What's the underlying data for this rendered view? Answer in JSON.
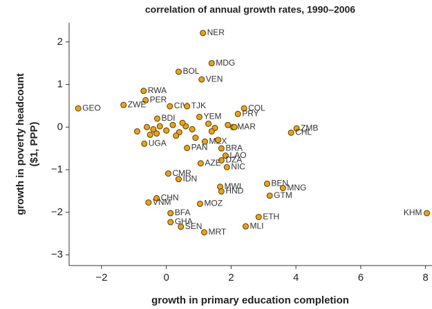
{
  "chart_data": {
    "type": "scatter",
    "title": "correlation of annual growth rates, 1990–2006",
    "xlabel": "growth in primary education completion",
    "ylabel": [
      "growth in poverty headcount",
      "($1, PPP)"
    ],
    "xlim": [
      -3,
      8.2
    ],
    "ylim": [
      -3.25,
      2.45
    ],
    "xticks": [
      {
        "value": -2,
        "label": "−2"
      },
      0,
      2,
      4,
      6,
      8
    ],
    "yticks": [
      {
        "value": -3,
        "label": "−3"
      },
      {
        "value": -2,
        "label": "−2"
      },
      {
        "value": -1,
        "label": "−1"
      },
      0,
      1,
      2
    ],
    "color": "#e8a21c",
    "edgecolor": "#5a3d00",
    "series": [
      {
        "labels": [
          "NER",
          "MDG",
          "BOL",
          "VEN",
          "RWA",
          "PER",
          "COL",
          "PRY",
          "CIV",
          "TJK",
          "GEO",
          "ZWE",
          "YEM",
          "ZMB",
          "CHL",
          "MAR",
          "UGA",
          "MEX",
          "PAN",
          "BRA",
          "LAO",
          "DZA",
          "AZE",
          "NIC",
          "CMR",
          "IDN",
          "BEN",
          "MNG",
          "MWI",
          "HND",
          "GTM",
          "CHN",
          "VNM",
          "MOZ",
          "KHM",
          "BFA",
          "ETH",
          "GHA",
          "SEN",
          "MLI",
          "MRT",
          "BDI",
          null,
          null,
          null,
          null,
          null,
          null,
          null,
          null,
          null,
          null,
          null,
          null,
          null,
          null,
          null,
          null,
          null,
          null,
          null,
          null
        ],
        "x": [
          1.13,
          1.4,
          0.38,
          1.09,
          -0.7,
          -0.64,
          2.4,
          2.21,
          0.11,
          0.64,
          -2.72,
          -1.32,
          1.02,
          4.02,
          3.85,
          2.06,
          -0.68,
          1.19,
          0.64,
          1.7,
          1.83,
          1.7,
          1.06,
          1.87,
          0.06,
          0.38,
          3.11,
          3.6,
          1.66,
          1.7,
          3.19,
          -0.3,
          -0.55,
          1.04,
          8.04,
          0.13,
          2.85,
          0.13,
          0.45,
          2.45,
          1.17,
          -0.28,
          -0.9,
          -0.6,
          -0.4,
          -0.2,
          0,
          0.2,
          0.4,
          0.6,
          0.8,
          1.3,
          1.5,
          1.9,
          2.1,
          -0.3,
          0.3,
          0.9,
          1.4,
          -0.5,
          0.5,
          1.6
        ],
        "values": [
          2.21,
          1.5,
          1.3,
          1.12,
          0.85,
          0.63,
          0.44,
          0.31,
          0.49,
          0.49,
          0.44,
          0.52,
          0.24,
          -0.03,
          -0.13,
          0,
          -0.39,
          -0.34,
          -0.49,
          -0.5,
          -0.67,
          -0.78,
          -0.85,
          -0.94,
          -1.09,
          -1.22,
          -1.33,
          -1.43,
          -1.4,
          -1.51,
          -1.61,
          -1.67,
          -1.77,
          -1.8,
          -2.02,
          -2.02,
          -2.11,
          -2.23,
          -2.34,
          -2.33,
          -2.47,
          0.2,
          -0.1,
          0,
          -0.05,
          0.02,
          -0.08,
          0.05,
          -0.12,
          0.02,
          -0.05,
          0.08,
          -0.02,
          0.05,
          0,
          -0.15,
          -0.2,
          -0.25,
          -0.1,
          -0.18,
          0.1,
          -0.3
        ]
      }
    ]
  }
}
